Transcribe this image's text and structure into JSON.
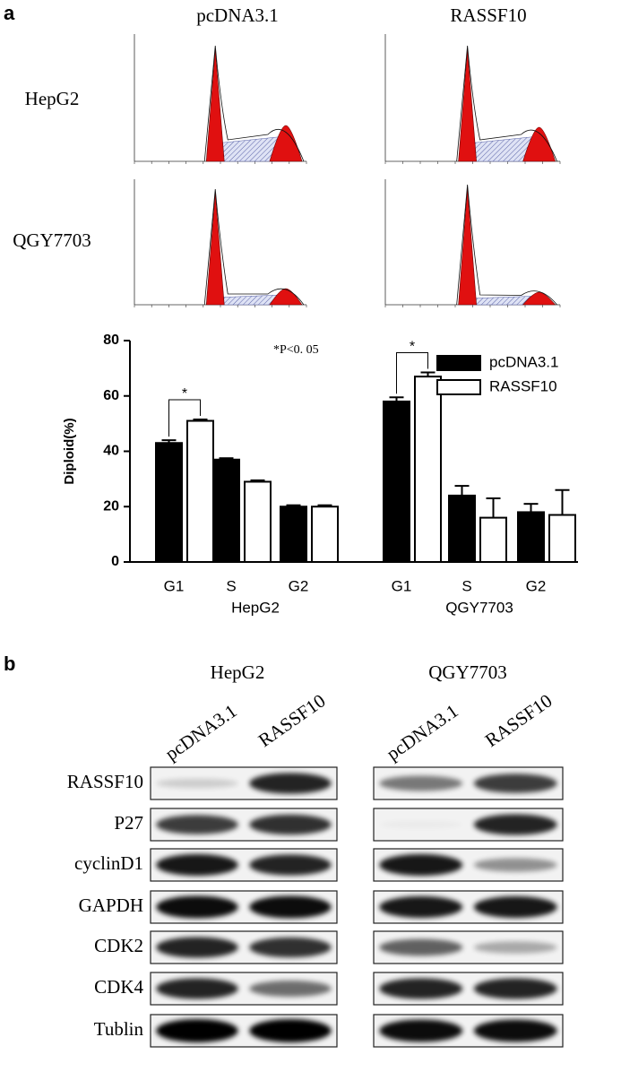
{
  "panel_a": {
    "label": "a",
    "columns": [
      "pcDNA3.1",
      "RASSF10"
    ],
    "rows": [
      "HepG2",
      "QGY7703"
    ]
  },
  "chart_data": {
    "type": "bar",
    "ylabel": "Diploid(%)",
    "annotation": "*P<0. 05",
    "categories": [
      "G1",
      "S",
      "G2",
      "G1",
      "S",
      "G2"
    ],
    "groups": [
      "HepG2",
      "QGY7703"
    ],
    "significance_marks": [
      "*",
      "*"
    ],
    "series": [
      {
        "name": "pcDNA3.1",
        "color": "#000000",
        "values": [
          43,
          37,
          20,
          58,
          24,
          18
        ],
        "errors": [
          1,
          0.5,
          0.5,
          1.5,
          3.5,
          3
        ]
      },
      {
        "name": "RASSF10",
        "color": "#ffffff",
        "values": [
          51,
          29,
          20,
          67,
          16,
          17
        ],
        "errors": [
          0.5,
          0.5,
          0.5,
          1.5,
          7,
          9
        ]
      }
    ],
    "ylim": [
      0,
      80
    ],
    "yticks": [
      0,
      20,
      40,
      60,
      80
    ],
    "legend": "upper right"
  },
  "panel_b": {
    "label": "b",
    "groups": [
      "HepG2",
      "QGY7703"
    ],
    "lanes": [
      [
        "pcDNA3.1",
        "RASSF10"
      ],
      [
        "pcDNA3.1",
        "RASSF10"
      ]
    ],
    "proteins": [
      "RASSF10",
      "P27",
      "cyclinD1",
      "GAPDH",
      "CDK2",
      "CDK4",
      "Tublin"
    ]
  }
}
